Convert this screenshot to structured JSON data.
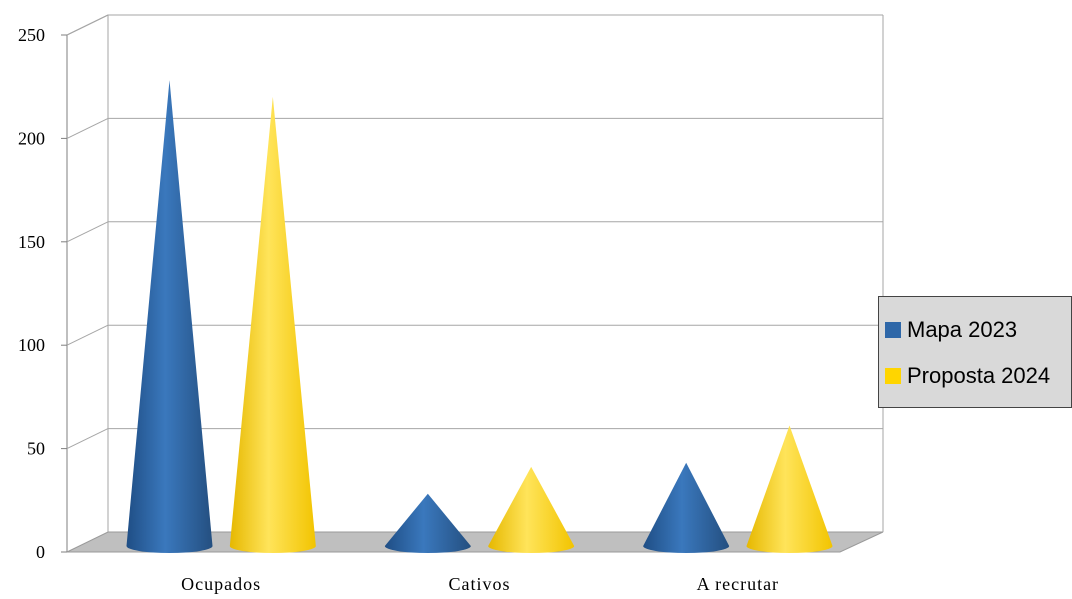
{
  "chart_data": {
    "type": "bar",
    "bar_shape": "cone",
    "categories": [
      "Ocupados",
      "Cativos",
      "A recrutar"
    ],
    "series": [
      {
        "name": "Mapa 2023",
        "values": [
          233,
          33,
          48
        ],
        "color": "#2e67a8"
      },
      {
        "name": "Proposta 2024",
        "values": [
          225,
          46,
          66
        ],
        "color": "#ffd500"
      }
    ],
    "y_ticks": [
      "0",
      "50",
      "100",
      "150",
      "200",
      "250"
    ],
    "ylim": [
      0,
      250
    ],
    "grid": true,
    "legend": "right",
    "colors": {
      "floor": "#bfbfbf",
      "grid": "#a6a6a6"
    }
  }
}
